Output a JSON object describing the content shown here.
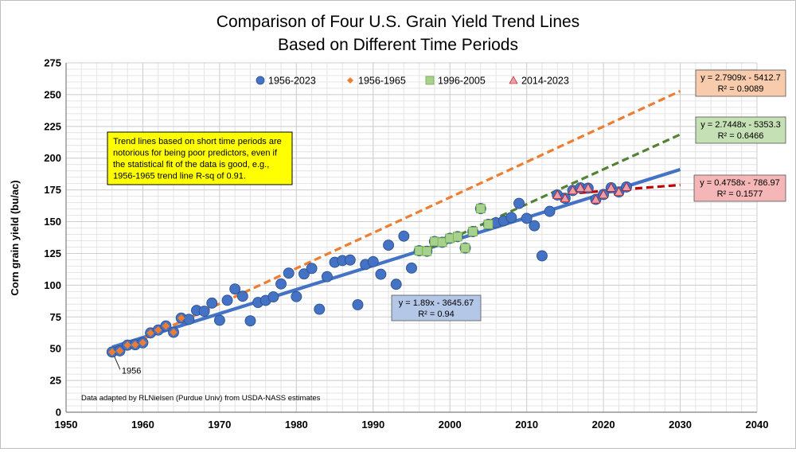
{
  "chart_data": {
    "type": "scatter",
    "title_line1": "Comparison of Four U.S. Grain Yield Trend Lines",
    "title_line2": "Based on Different Time Periods",
    "xlabel": "",
    "ylabel": "Corn grain yield (bu/ac)",
    "xlim": [
      1950,
      2040
    ],
    "ylim": [
      0,
      275
    ],
    "xticks": [
      1950,
      1960,
      1970,
      1980,
      1990,
      2000,
      2010,
      2020,
      2030,
      2040
    ],
    "yticks": [
      0,
      25,
      50,
      75,
      100,
      125,
      150,
      175,
      200,
      225,
      250,
      275
    ],
    "grid": true,
    "legend_position": "top",
    "series": [
      {
        "name": "1956-2023",
        "marker": "circle",
        "color": "#4472c4",
        "points": [
          [
            1956,
            47.4
          ],
          [
            1957,
            48.3
          ],
          [
            1958,
            52.8
          ],
          [
            1959,
            53.1
          ],
          [
            1960,
            54.7
          ],
          [
            1961,
            62.4
          ],
          [
            1962,
            64.7
          ],
          [
            1963,
            67.9
          ],
          [
            1964,
            62.9
          ],
          [
            1965,
            74.1
          ],
          [
            1966,
            73.1
          ],
          [
            1967,
            80.1
          ],
          [
            1968,
            79.5
          ],
          [
            1969,
            85.9
          ],
          [
            1970,
            72.4
          ],
          [
            1971,
            88.1
          ],
          [
            1972,
            97.0
          ],
          [
            1973,
            91.3
          ],
          [
            1974,
            71.9
          ],
          [
            1975,
            86.4
          ],
          [
            1976,
            88.0
          ],
          [
            1977,
            90.8
          ],
          [
            1978,
            101.0
          ],
          [
            1979,
            109.5
          ],
          [
            1980,
            91.0
          ],
          [
            1981,
            108.9
          ],
          [
            1982,
            113.2
          ],
          [
            1983,
            81.1
          ],
          [
            1984,
            106.7
          ],
          [
            1985,
            118.0
          ],
          [
            1986,
            119.4
          ],
          [
            1987,
            119.8
          ],
          [
            1988,
            84.6
          ],
          [
            1989,
            116.3
          ],
          [
            1990,
            118.5
          ],
          [
            1991,
            108.6
          ],
          [
            1992,
            131.5
          ],
          [
            1993,
            100.7
          ],
          [
            1994,
            138.6
          ],
          [
            1995,
            113.5
          ],
          [
            1996,
            127.1
          ],
          [
            1997,
            126.7
          ],
          [
            1998,
            134.4
          ],
          [
            1999,
            133.8
          ],
          [
            2000,
            136.9
          ],
          [
            2001,
            138.2
          ],
          [
            2002,
            129.3
          ],
          [
            2003,
            142.2
          ],
          [
            2004,
            160.3
          ],
          [
            2005,
            147.9
          ],
          [
            2006,
            149.1
          ],
          [
            2007,
            150.7
          ],
          [
            2008,
            153.3
          ],
          [
            2009,
            164.4
          ],
          [
            2010,
            152.6
          ],
          [
            2011,
            146.8
          ],
          [
            2012,
            123.1
          ],
          [
            2013,
            158.1
          ],
          [
            2014,
            171.0
          ],
          [
            2015,
            168.4
          ],
          [
            2016,
            174.6
          ],
          [
            2017,
            176.6
          ],
          [
            2018,
            176.4
          ],
          [
            2019,
            167.5
          ],
          [
            2020,
            171.4
          ],
          [
            2021,
            176.7
          ],
          [
            2022,
            173.4
          ],
          [
            2023,
            177.3
          ]
        ]
      },
      {
        "name": "1956-1965",
        "marker": "diamond",
        "color": "#ed7d31",
        "points": [
          [
            1956,
            47.4
          ],
          [
            1957,
            48.3
          ],
          [
            1958,
            52.8
          ],
          [
            1959,
            53.1
          ],
          [
            1960,
            54.7
          ],
          [
            1961,
            62.4
          ],
          [
            1962,
            64.7
          ],
          [
            1963,
            67.9
          ],
          [
            1964,
            62.9
          ],
          [
            1965,
            74.1
          ]
        ]
      },
      {
        "name": "1996-2005",
        "marker": "square",
        "color": "#a9d18e",
        "points": [
          [
            1996,
            127.1
          ],
          [
            1997,
            126.7
          ],
          [
            1998,
            134.4
          ],
          [
            1999,
            133.8
          ],
          [
            2000,
            136.9
          ],
          [
            2001,
            138.2
          ],
          [
            2002,
            129.3
          ],
          [
            2003,
            142.2
          ],
          [
            2004,
            160.3
          ],
          [
            2005,
            147.9
          ]
        ]
      },
      {
        "name": "2014-2023",
        "marker": "triangle",
        "color": "#e8a0a8",
        "points": [
          [
            2014,
            171.0
          ],
          [
            2015,
            168.4
          ],
          [
            2016,
            174.6
          ],
          [
            2017,
            176.6
          ],
          [
            2018,
            176.4
          ],
          [
            2019,
            167.5
          ],
          [
            2020,
            171.4
          ],
          [
            2021,
            176.7
          ],
          [
            2022,
            173.4
          ],
          [
            2023,
            177.3
          ]
        ]
      }
    ],
    "trendlines": [
      {
        "series": "1956-2023",
        "slope": 1.89,
        "intercept": -3645.67,
        "x_start": 1956,
        "x_end": 2030,
        "color": "#4472c4",
        "dashed": false,
        "equation": "y = 1.89x - 3645.67",
        "r2": "R² = 0.94",
        "box_fill": "#b4c7e7"
      },
      {
        "series": "1956-1965",
        "slope": 2.7909,
        "intercept": -5412.7,
        "x_start": 1956,
        "x_end": 2030,
        "color": "#ed7d31",
        "dashed": true,
        "equation": "y = 2.7909x - 5412.7",
        "r2": "R² = 0.9089",
        "box_fill": "#f8cbad"
      },
      {
        "series": "1996-2005",
        "slope": 2.7448,
        "intercept": -5353.3,
        "x_start": 1996,
        "x_end": 2030,
        "color": "#548235",
        "dashed": true,
        "equation": "y = 2.7448x - 5353.3",
        "r2": "R² = 0.6466",
        "box_fill": "#c5e0b4"
      },
      {
        "series": "2014-2023",
        "slope": 0.4758,
        "intercept": -786.97,
        "x_start": 2014,
        "x_end": 2030,
        "color": "#c00000",
        "dashed": true,
        "equation": "y = 0.4758x - 786.97",
        "r2": "R² = 0.1577",
        "box_fill": "#f4b6b6"
      }
    ],
    "annotations": {
      "note_lines": [
        "Trend lines based on short time periods are",
        "notorious for being poor predictors, even if",
        "the statistical fit of the data is good, e.g.,",
        "1956-1965 trend line R-sq of 0.91."
      ],
      "note_fill": "#ffff00",
      "point_label": "1956",
      "credit": "Data adapted by RLNielsen (Purdue Univ) from USDA-NASS estimates"
    }
  }
}
